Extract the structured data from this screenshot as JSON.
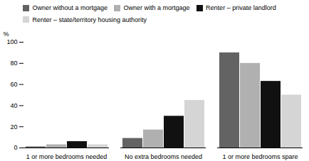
{
  "chart_data": {
    "type": "bar",
    "categories": [
      "1 or more bedrooms needed",
      "No extra bedrooms needed",
      "1 or more bedrooms spare"
    ],
    "series": [
      {
        "name": "Owner without a mortgage",
        "values": [
          1,
          9,
          90
        ],
        "color": "#636363"
      },
      {
        "name": "Owner with a mortgage",
        "values": [
          3,
          17,
          80
        ],
        "color": "#b0b0b0"
      },
      {
        "name": "Renter – private landlord",
        "values": [
          6,
          30,
          63
        ],
        "color": "#111111"
      },
      {
        "name": "Renter – state/territory housing authority",
        "values": [
          3,
          45,
          50
        ],
        "color": "#d5d5d5"
      }
    ],
    "ylabel": "%",
    "ylim": [
      0,
      100
    ],
    "yticks": [
      0,
      20,
      40,
      60,
      80,
      100
    ],
    "grid": false,
    "legend": "top"
  }
}
